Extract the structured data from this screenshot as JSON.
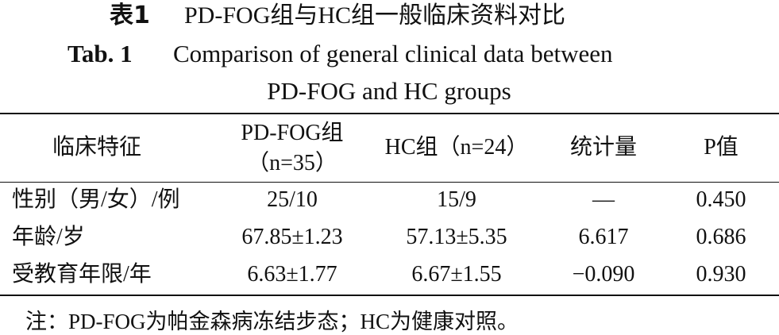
{
  "title_cn": {
    "label": "表1",
    "text": "PD-FOG组与HC组一般临床资料对比"
  },
  "title_en": {
    "label": "Tab. 1",
    "lines": [
      "Comparison of general clinical data between",
      "PD-FOG and HC groups"
    ]
  },
  "table": {
    "header": [
      [
        "临床特征"
      ],
      [
        "PD-FOG组",
        "（n=35）"
      ],
      [
        "HC组（n=24）"
      ],
      [
        "统计量"
      ],
      [
        "P值"
      ]
    ],
    "rows": [
      [
        "性别（男/女）/例",
        "25/10",
        "15/9",
        "—",
        "0.450"
      ],
      [
        "年龄/岁",
        "67.85±1.23",
        "57.13±5.35",
        "6.617",
        "0.686"
      ],
      [
        "受教育年限/年",
        "6.63±1.77",
        "6.67±1.55",
        "−0.090",
        "0.930"
      ]
    ]
  },
  "note": "注：PD-FOG为帕金森病冻结步态；HC为健康对照。"
}
